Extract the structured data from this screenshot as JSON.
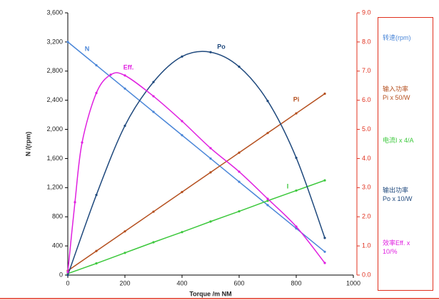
{
  "chart_data": {
    "type": "line",
    "x_label": "Torque  /m NM",
    "y_label": "N /(rpm)",
    "xlim": [
      0,
      1000
    ],
    "xticks": [
      0,
      200,
      400,
      600,
      800,
      1000
    ],
    "ylim": [
      0,
      3600
    ],
    "yticks": [
      0,
      400,
      800,
      {
        "value": 1200,
        "label": "1,200"
      },
      {
        "value": 1600,
        "label": "1,600"
      },
      {
        "value": 2000,
        "label": "2,000"
      },
      {
        "value": 2400,
        "label": "2,400"
      },
      {
        "value": 2800,
        "label": "2,800"
      },
      {
        "value": 3200,
        "label": "3,200"
      },
      {
        "value": 3600,
        "label": "3,600"
      }
    ],
    "y2lim": [
      0,
      9
    ],
    "y2ticks": [
      {
        "value": 0,
        "label": "0.0"
      },
      {
        "value": 1,
        "label": "1.0"
      },
      {
        "value": 2,
        "label": "2.0"
      },
      {
        "value": 3,
        "label": "3.0"
      },
      {
        "value": 4,
        "label": "4.0"
      },
      {
        "value": 5,
        "label": "5.0"
      },
      {
        "value": 6,
        "label": "6.0"
      },
      {
        "value": 7,
        "label": "7.0"
      },
      {
        "value": 8,
        "label": "8.0"
      },
      {
        "value": 9,
        "label": "9.0"
      }
    ],
    "y2_color": "#e0301e",
    "legend_position": "right",
    "series": [
      {
        "name": "转速(rpm)",
        "label": "N",
        "color": "#4a86d8",
        "x": [
          0,
          100,
          200,
          300,
          400,
          500,
          600,
          700,
          800,
          900
        ],
        "values": [
          3200,
          2880,
          2560,
          2240,
          1920,
          1600,
          1280,
          960,
          640,
          320
        ]
      },
      {
        "name": "输入功率\nPi  x 50/W",
        "label": "Pi",
        "color": "#b5501f",
        "x": [
          0,
          100,
          200,
          300,
          400,
          500,
          600,
          700,
          800,
          900
        ],
        "values": [
          60,
          330,
          600,
          870,
          1140,
          1410,
          1680,
          1950,
          2220,
          2490
        ]
      },
      {
        "name": "电流I  x 4/A",
        "label": "I",
        "color": "#3cc83c",
        "x": [
          0,
          100,
          200,
          300,
          400,
          500,
          600,
          700,
          800,
          900
        ],
        "values": [
          20,
          160,
          305,
          450,
          590,
          735,
          875,
          1020,
          1160,
          1300
        ]
      },
      {
        "name": "输出功率\nPo x 10/W",
        "label": "Po",
        "color": "#1f497d",
        "x": [
          0,
          100,
          200,
          300,
          400,
          500,
          600,
          700,
          800,
          900
        ],
        "values": [
          0,
          1100,
          2050,
          2650,
          3000,
          3060,
          2860,
          2390,
          1610,
          510
        ]
      },
      {
        "name": "效率Eff. x\n10/%",
        "label": "Eff.",
        "color": "#e020e0",
        "x": [
          0,
          25,
          50,
          100,
          150,
          200,
          300,
          400,
          500,
          600,
          700,
          800,
          900
        ],
        "values": [
          40,
          1000,
          1820,
          2500,
          2750,
          2740,
          2455,
          2113,
          1742,
          1419,
          1047,
          665,
          166
        ]
      }
    ]
  }
}
